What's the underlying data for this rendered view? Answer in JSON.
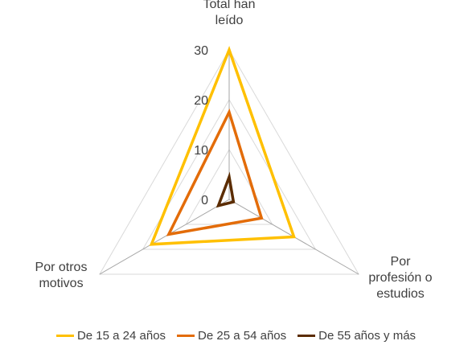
{
  "chart_data": {
    "type": "radar",
    "title": "",
    "axes": [
      {
        "label_lines": [
          "Total han",
          "leído"
        ]
      },
      {
        "label_lines": [
          "Por",
          "profesión o",
          "estudios"
        ]
      },
      {
        "label_lines": [
          "Por otros",
          "motivos"
        ]
      }
    ],
    "ticks": [
      "0",
      "10",
      "20",
      "30"
    ],
    "range": [
      0,
      30
    ],
    "grid": true,
    "legend_position": "bottom",
    "series": [
      {
        "name": "De 15 a 24 años",
        "color": "#FFC000",
        "values": [
          30,
          15,
          18
        ]
      },
      {
        "name": "De 25 a 54 años",
        "color": "#E36C09",
        "values": [
          17.5,
          7.5,
          14
        ]
      },
      {
        "name": "De 55 años y más",
        "color": "#5B2C00",
        "values": [
          4.5,
          1,
          2.5
        ]
      }
    ]
  }
}
